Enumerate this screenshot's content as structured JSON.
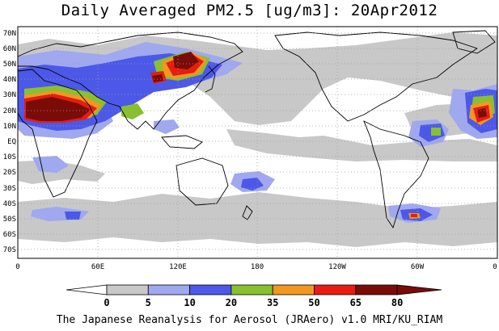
{
  "title": "Daily Averaged PM2.5 [ug/m3]: 20Apr2012",
  "footer": "The Japanese Reanalysis for Aerosol (JRAero) v1.0 MRI/KU_RIAM",
  "latitude_labels": [
    "70N",
    "60N",
    "50N",
    "40N",
    "30N",
    "20N",
    "10N",
    "EQ",
    "10S",
    "20S",
    "30S",
    "40S",
    "50S",
    "60S",
    "70S"
  ],
  "longitude_labels": [
    "0",
    "60E",
    "120E",
    "180",
    "120W",
    "60W",
    "0"
  ],
  "colorbar": {
    "labels": [
      "0",
      "5",
      "10",
      "20",
      "35",
      "50",
      "65",
      "80"
    ],
    "colors": [
      "#ffffff",
      "#c8c8c8",
      "#a0a8f0",
      "#4c58e8",
      "#88c030",
      "#f09820",
      "#e81c10",
      "#7a0c08"
    ]
  }
}
